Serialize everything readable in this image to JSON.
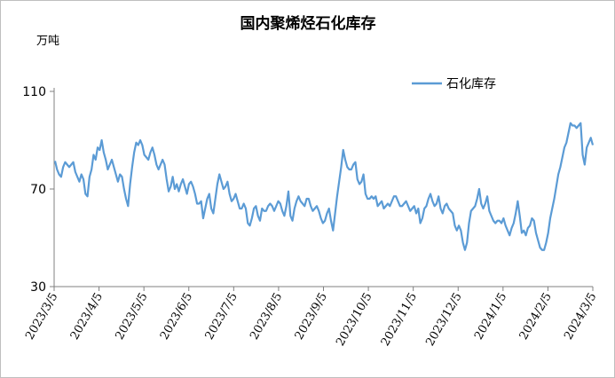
{
  "chart_data": {
    "type": "line",
    "title": "国内聚烯烃石化库存",
    "unit_label": "万吨",
    "ylim": [
      30,
      110
    ],
    "yticks": [
      30,
      70,
      110
    ],
    "grid": false,
    "legend_position": "top-right",
    "x_tick_labels": [
      "2023/3/5",
      "2023/4/5",
      "2023/5/5",
      "2023/6/5",
      "2023/7/5",
      "2023/8/5",
      "2023/9/5",
      "2023/10/5",
      "2023/11/5",
      "2023/12/5",
      "2024/1/5",
      "2024/2/5",
      "2024/3/5"
    ],
    "series": [
      {
        "name": "石化库存",
        "color": "#5b9bd5",
        "values": [
          81.5,
          78,
          76,
          75,
          79,
          81,
          80,
          79,
          80,
          81,
          77,
          75,
          73,
          76,
          74,
          68,
          67,
          75,
          78,
          84,
          82,
          87,
          86,
          90,
          85,
          82,
          78,
          80,
          82,
          79,
          76,
          73,
          76,
          75,
          70,
          66,
          63,
          72,
          79,
          85,
          89,
          88,
          90,
          88,
          84,
          83,
          82,
          85,
          87,
          84,
          80,
          78,
          80,
          82,
          80,
          74,
          69,
          71,
          75,
          70,
          72,
          69,
          72,
          74,
          71,
          68,
          72,
          73,
          71,
          68,
          64,
          64,
          65,
          58,
          62,
          66,
          68,
          62,
          60,
          66,
          72,
          76,
          73,
          70,
          71,
          73,
          68,
          65,
          66,
          68,
          65,
          62,
          62,
          64,
          62,
          56,
          55,
          58,
          62,
          63,
          59,
          57,
          62,
          61,
          61,
          63,
          64,
          63,
          61,
          63,
          65,
          64,
          61,
          59,
          63,
          69,
          59,
          57,
          62,
          65,
          67,
          65,
          64,
          63,
          66,
          66,
          63,
          61,
          62,
          63,
          61,
          58,
          56,
          57,
          60,
          62,
          57,
          53,
          60,
          67,
          73,
          79,
          86,
          82,
          79,
          78,
          78,
          80,
          81,
          74,
          72,
          73,
          76,
          68,
          66,
          66,
          67,
          66,
          67,
          63,
          64,
          65,
          62,
          63,
          64,
          63,
          65,
          67,
          67,
          65,
          63,
          63,
          64,
          65,
          63,
          61,
          62,
          63,
          60,
          62,
          56,
          58,
          62,
          63,
          66,
          68,
          65,
          63,
          64,
          67,
          62,
          60,
          63,
          64,
          62,
          61,
          60,
          55,
          53,
          55,
          53,
          48,
          45,
          48,
          56,
          61,
          62,
          63,
          66,
          70,
          64,
          62,
          64,
          67,
          61,
          59,
          57,
          56,
          57,
          57,
          56,
          58,
          55,
          53,
          51,
          54,
          56,
          60,
          65,
          59,
          52,
          53,
          51,
          54,
          55,
          58,
          57,
          52,
          49,
          46,
          45,
          45,
          48,
          52,
          58,
          62,
          66,
          71,
          76,
          79,
          83,
          87,
          89,
          93,
          97,
          96,
          96,
          95,
          96,
          97,
          84,
          80,
          87,
          89,
          91,
          88
        ]
      }
    ]
  }
}
